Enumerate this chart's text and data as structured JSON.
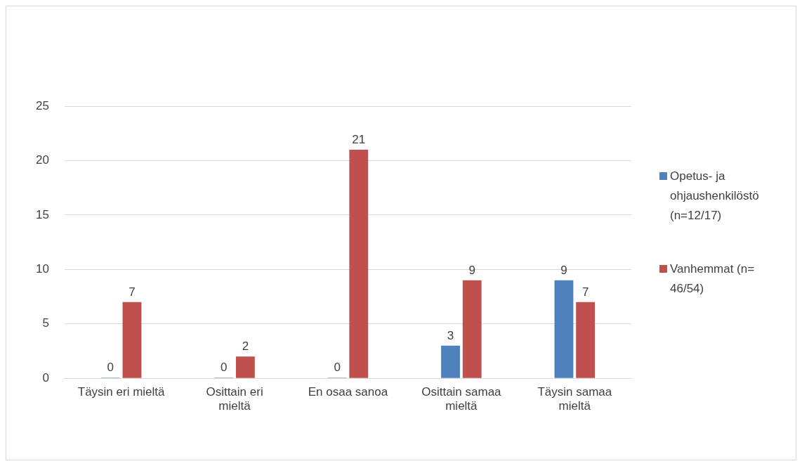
{
  "chart_data": {
    "type": "bar",
    "categories": [
      "Täysin eri mieltä",
      "Osittain eri mieltä",
      "En osaa sanoa",
      "Osittain samaa mieltä",
      "Täysin samaa mieltä"
    ],
    "series": [
      {
        "name": "Opetus- ja ohjaushenkilöstö (n=12/17)",
        "color": "#4f81bd",
        "values": [
          0,
          0,
          0,
          3,
          9
        ]
      },
      {
        "name": "Vanhemmat (n= 46/54)",
        "color": "#c0504d",
        "values": [
          7,
          2,
          21,
          9,
          7
        ]
      }
    ],
    "ylim": [
      0,
      25
    ],
    "yticks": [
      0,
      5,
      10,
      15,
      20,
      25
    ],
    "grid": "y",
    "legend": "right",
    "data_labels": true
  }
}
